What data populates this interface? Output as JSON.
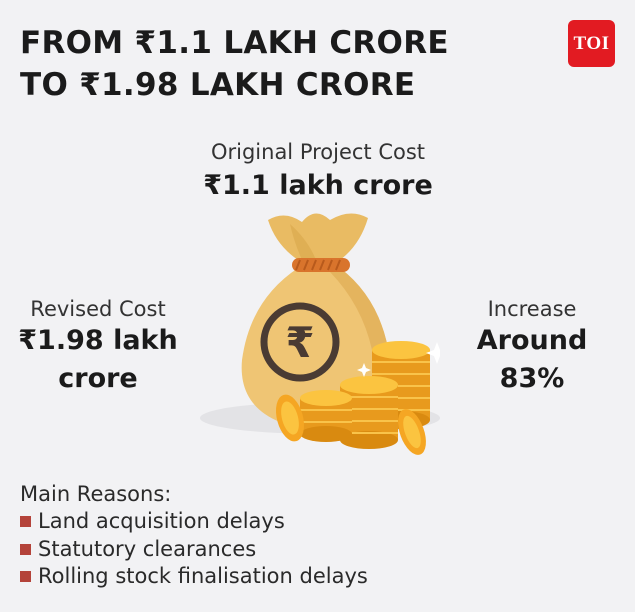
{
  "headline": {
    "line1": "FROM ₹1.1 LAKH CRORE",
    "line2": "TO ₹1.98 LAKH CRORE"
  },
  "logo": {
    "text": "TOI",
    "color": "#e21b22"
  },
  "original_cost": {
    "label": "Original Project Cost",
    "value": "₹1.1 lakh crore"
  },
  "revised_cost": {
    "label": "Revised Cost",
    "value_line1": "₹1.98 lakh",
    "value_line2": "crore"
  },
  "increase": {
    "label": "Increase",
    "value_line1": "Around",
    "value_line2": "83%"
  },
  "illustration": {
    "icon": "money-bag-with-coins-icon",
    "symbol": "₹",
    "bag_color": "#efc574",
    "coin_color": "#f5a623"
  },
  "reasons": {
    "title": "Main Reasons:",
    "items": [
      "Land acquisition delays",
      "Statutory clearances",
      "Rolling stock finalisation delays"
    ],
    "bullet_color": "#b4433a"
  }
}
